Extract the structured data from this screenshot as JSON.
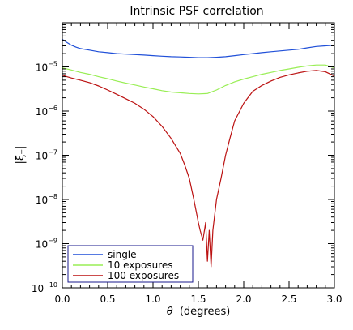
{
  "chart_data": {
    "type": "line",
    "title": "Intrinsic PSF correlation",
    "xlabel_symbol": "θ",
    "xlabel_text": "(degrees)",
    "ylabel": "|ξ₊|",
    "xlim": [
      0.0,
      3.0
    ],
    "ylim": [
      1e-10,
      0.0001
    ],
    "yscale": "log",
    "x_ticks": [
      "0.0",
      "0.5",
      "1.0",
      "1.5",
      "2.0",
      "2.5",
      "3.0"
    ],
    "y_ticks": [
      {
        "value": 1e-10,
        "base": "10",
        "exp": "−10"
      },
      {
        "value": 1e-09,
        "base": "10",
        "exp": "−9"
      },
      {
        "value": 1e-08,
        "base": "10",
        "exp": "−8"
      },
      {
        "value": 1e-07,
        "base": "10",
        "exp": "−7"
      },
      {
        "value": 1e-06,
        "base": "10",
        "exp": "−6"
      },
      {
        "value": 1e-05,
        "base": "10",
        "exp": "−5"
      }
    ],
    "grid": false,
    "legend_position": "bottom-left",
    "series": [
      {
        "name": "single",
        "color": "#1f4fd8",
        "x": [
          0.0,
          0.05,
          0.1,
          0.15,
          0.2,
          0.3,
          0.4,
          0.5,
          0.6,
          0.7,
          0.8,
          0.9,
          1.0,
          1.1,
          1.2,
          1.3,
          1.4,
          1.5,
          1.6,
          1.7,
          1.8,
          1.9,
          2.0,
          2.1,
          2.2,
          2.3,
          2.4,
          2.5,
          2.6,
          2.7,
          2.8,
          2.9,
          3.0
        ],
        "y": [
          4.2e-05,
          3.6e-05,
          3.1e-05,
          2.8e-05,
          2.6e-05,
          2.4e-05,
          2.2e-05,
          2.1e-05,
          2e-05,
          1.95e-05,
          1.9e-05,
          1.85e-05,
          1.8e-05,
          1.75e-05,
          1.7e-05,
          1.68e-05,
          1.65e-05,
          1.62e-05,
          1.62e-05,
          1.65e-05,
          1.7e-05,
          1.8e-05,
          1.9e-05,
          2e-05,
          2.1e-05,
          2.2e-05,
          2.3e-05,
          2.4e-05,
          2.5e-05,
          2.7e-05,
          2.9e-05,
          3e-05,
          3.1e-05
        ]
      },
      {
        "name": "10 exposures",
        "color": "#99ee55",
        "x": [
          0.0,
          0.05,
          0.1,
          0.2,
          0.3,
          0.4,
          0.5,
          0.6,
          0.7,
          0.8,
          0.9,
          1.0,
          1.1,
          1.2,
          1.3,
          1.4,
          1.5,
          1.6,
          1.7,
          1.8,
          1.9,
          2.0,
          2.1,
          2.2,
          2.3,
          2.4,
          2.5,
          2.6,
          2.7,
          2.8,
          2.9,
          3.0
        ],
        "y": [
          9.5e-06,
          9e-06,
          8.5e-06,
          7.5e-06,
          6.8e-06,
          6e-06,
          5.4e-06,
          4.8e-06,
          4.3e-06,
          3.9e-06,
          3.5e-06,
          3.2e-06,
          2.9e-06,
          2.7e-06,
          2.6e-06,
          2.5e-06,
          2.45e-06,
          2.5e-06,
          3e-06,
          3.8e-06,
          4.6e-06,
          5.3e-06,
          6e-06,
          6.8e-06,
          7.5e-06,
          8.3e-06,
          9e-06,
          9.8e-06,
          1.05e-05,
          1.1e-05,
          1.1e-05,
          9.5e-06
        ]
      },
      {
        "name": "100 exposures",
        "color": "#bb1111",
        "x": [
          0.0,
          0.05,
          0.1,
          0.2,
          0.3,
          0.4,
          0.5,
          0.6,
          0.7,
          0.8,
          0.9,
          1.0,
          1.1,
          1.2,
          1.3,
          1.35,
          1.4,
          1.45,
          1.5,
          1.52,
          1.55,
          1.58,
          1.6,
          1.62,
          1.64,
          1.66,
          1.7,
          1.75,
          1.8,
          1.85,
          1.9,
          2.0,
          2.1,
          2.2,
          2.3,
          2.4,
          2.5,
          2.6,
          2.7,
          2.8,
          2.9,
          3.0
        ],
        "y": [
          6.5e-06,
          6e-06,
          5.6e-06,
          5e-06,
          4.4e-06,
          3.7e-06,
          3e-06,
          2.4e-06,
          1.9e-06,
          1.5e-06,
          1.1e-06,
          7.5e-07,
          4.5e-07,
          2.4e-07,
          1.1e-07,
          6e-08,
          3e-08,
          1e-08,
          3e-09,
          2e-09,
          1.2e-09,
          3e-09,
          4e-10,
          2e-09,
          3e-10,
          2e-09,
          1e-08,
          3e-08,
          1e-07,
          2.5e-07,
          6e-07,
          1.5e-06,
          2.8e-06,
          3.8e-06,
          4.8e-06,
          5.8e-06,
          6.6e-06,
          7.3e-06,
          8e-06,
          8.3e-06,
          7.8e-06,
          6.2e-06
        ]
      }
    ]
  }
}
